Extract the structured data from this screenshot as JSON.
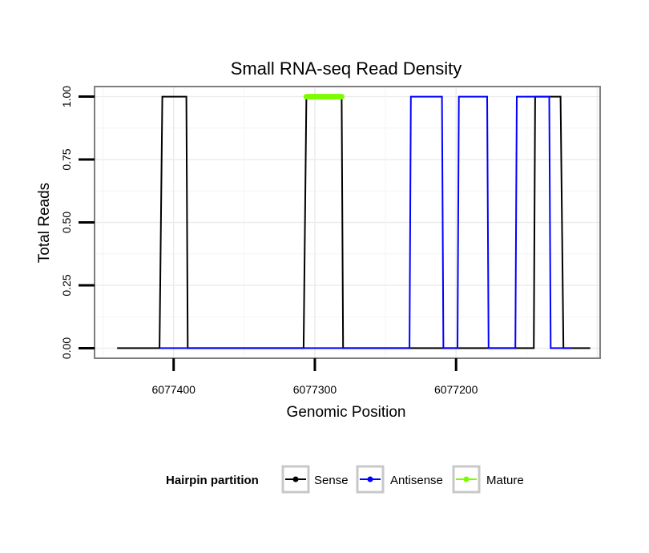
{
  "chart_data": {
    "type": "line",
    "title": "Small RNA-seq Read Density",
    "xlabel": "Genomic Position",
    "ylabel": "Total Reads",
    "x_reversed": true,
    "xlim": [
      6077456,
      6077098
    ],
    "ylim": [
      -0.04,
      1.04
    ],
    "x_ticks": [
      6077400,
      6077300,
      6077200
    ],
    "x_tick_labels": [
      "6077400",
      "6077300",
      "6077200"
    ],
    "y_ticks": [
      0,
      0.25,
      0.5,
      0.75,
      1
    ],
    "y_tick_labels": [
      "0.00",
      "0.25",
      "0.50",
      "0.75",
      "1.00"
    ],
    "grid": true,
    "legend": {
      "title": "Hairpin partition",
      "position": "bottom",
      "entries": [
        "Sense",
        "Antisense",
        "Mature"
      ]
    },
    "series": [
      {
        "name": "Sense",
        "color": "#000000",
        "x": [
          6077440,
          6077410,
          6077408,
          6077391,
          6077390,
          6077308,
          6077306,
          6077281,
          6077280,
          6077145,
          6077144,
          6077126,
          6077124,
          6077112,
          6077105
        ],
        "y": [
          0,
          0,
          1,
          1,
          0,
          0,
          1,
          1,
          0,
          0,
          1,
          1,
          0,
          0,
          0
        ]
      },
      {
        "name": "Antisense",
        "color": "#0000ff",
        "x": [
          6077410,
          6077391,
          6077390,
          6077308,
          6077306,
          6077281,
          6077280,
          6077233,
          6077232,
          6077210,
          6077209,
          6077199,
          6077198,
          6077178,
          6077177,
          6077158,
          6077157,
          6077140,
          6077139,
          6077134,
          6077133,
          6077118
        ],
        "y": [
          0,
          0,
          0,
          0,
          0,
          0,
          0,
          0,
          1,
          1,
          0,
          0,
          1,
          1,
          0,
          0,
          1,
          1,
          1,
          1,
          0,
          0
        ]
      },
      {
        "name": "Mature",
        "color": "#7cfc00",
        "x": [
          6077306,
          6077281
        ],
        "y": [
          1,
          1
        ]
      }
    ]
  }
}
